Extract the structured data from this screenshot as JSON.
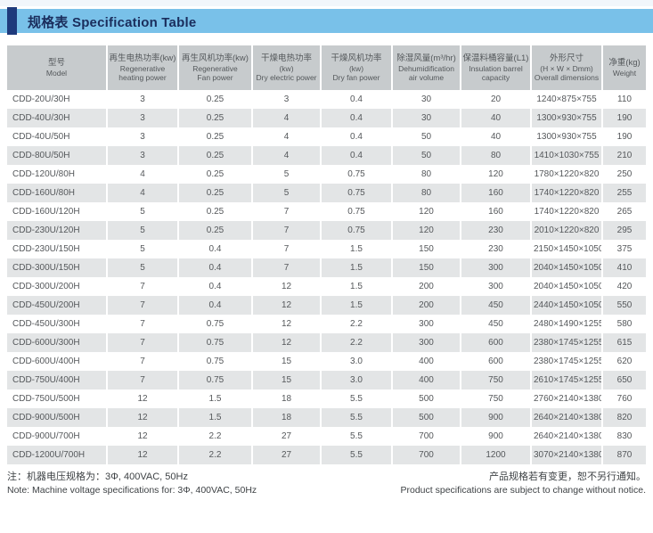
{
  "header": {
    "title_zh": "规格表",
    "title_en": "Specification Table"
  },
  "colors": {
    "title_bar_blue": "#79c1e9",
    "title_accent_navy": "#1e3a7c",
    "table_header_gray": "#c7cbcd",
    "row_stripe_gray": "#e3e5e6"
  },
  "table": {
    "columns": [
      {
        "lines": [
          "型号",
          "Model"
        ]
      },
      {
        "lines": [
          "再生电热功率(kw)",
          "Regenerative",
          "heating power"
        ]
      },
      {
        "lines": [
          "再生风机功率(kw)",
          "Regenerative",
          "Fan power"
        ]
      },
      {
        "lines": [
          "干燥电热功率",
          "(kw)",
          "Dry electric power"
        ]
      },
      {
        "lines": [
          "干燥风机功率",
          "(kw)",
          "Dry fan power"
        ]
      },
      {
        "lines": [
          "除湿风量(m³/hr)",
          "Dehumidification",
          "air volume"
        ]
      },
      {
        "lines": [
          "保温料桶容量(L1)",
          "Insulation barrel",
          "capacity"
        ]
      },
      {
        "lines": [
          "外形尺寸",
          "(H × W × Dmm)",
          "Overall dimensions"
        ]
      },
      {
        "lines": [
          "净重(kg)",
          "Weight"
        ]
      }
    ],
    "rows": [
      [
        "CDD-20U/30H",
        "3",
        "0.25",
        "3",
        "0.4",
        "30",
        "20",
        "1240×875×755",
        "110"
      ],
      [
        "CDD-40U/30H",
        "3",
        "0.25",
        "4",
        "0.4",
        "30",
        "40",
        "1300×930×755",
        "190"
      ],
      [
        "CDD-40U/50H",
        "3",
        "0.25",
        "4",
        "0.4",
        "50",
        "40",
        "1300×930×755",
        "190"
      ],
      [
        "CDD-80U/50H",
        "3",
        "0.25",
        "4",
        "0.4",
        "50",
        "80",
        "1410×1030×755",
        "210"
      ],
      [
        "CDD-120U/80H",
        "4",
        "0.25",
        "5",
        "0.75",
        "80",
        "120",
        "1780×1220×820",
        "250"
      ],
      [
        "CDD-160U/80H",
        "4",
        "0.25",
        "5",
        "0.75",
        "80",
        "160",
        "1740×1220×820",
        "255"
      ],
      [
        "CDD-160U/120H",
        "5",
        "0.25",
        "7",
        "0.75",
        "120",
        "160",
        "1740×1220×820",
        "265"
      ],
      [
        "CDD-230U/120H",
        "5",
        "0.25",
        "7",
        "0.75",
        "120",
        "230",
        "2010×1220×820",
        "295"
      ],
      [
        "CDD-230U/150H",
        "5",
        "0.4",
        "7",
        "1.5",
        "150",
        "230",
        "2150×1450×1050",
        "375"
      ],
      [
        "CDD-300U/150H",
        "5",
        "0.4",
        "7",
        "1.5",
        "150",
        "300",
        "2040×1450×1050",
        "410"
      ],
      [
        "CDD-300U/200H",
        "7",
        "0.4",
        "12",
        "1.5",
        "200",
        "300",
        "2040×1450×1050",
        "420"
      ],
      [
        "CDD-450U/200H",
        "7",
        "0.4",
        "12",
        "1.5",
        "200",
        "450",
        "2440×1450×1050",
        "550"
      ],
      [
        "CDD-450U/300H",
        "7",
        "0.75",
        "12",
        "2.2",
        "300",
        "450",
        "2480×1490×1255",
        "580"
      ],
      [
        "CDD-600U/300H",
        "7",
        "0.75",
        "12",
        "2.2",
        "300",
        "600",
        "2380×1745×1255",
        "615"
      ],
      [
        "CDD-600U/400H",
        "7",
        "0.75",
        "15",
        "3.0",
        "400",
        "600",
        "2380×1745×1255",
        "620"
      ],
      [
        "CDD-750U/400H",
        "7",
        "0.75",
        "15",
        "3.0",
        "400",
        "750",
        "2610×1745×1255",
        "650"
      ],
      [
        "CDD-750U/500H",
        "12",
        "1.5",
        "18",
        "5.5",
        "500",
        "750",
        "2760×2140×1380",
        "760"
      ],
      [
        "CDD-900U/500H",
        "12",
        "1.5",
        "18",
        "5.5",
        "500",
        "900",
        "2640×2140×1380",
        "820"
      ],
      [
        "CDD-900U/700H",
        "12",
        "2.2",
        "27",
        "5.5",
        "700",
        "900",
        "2640×2140×1380",
        "830"
      ],
      [
        "CDD-1200U/700H",
        "12",
        "2.2",
        "27",
        "5.5",
        "700",
        "1200",
        "3070×2140×1380",
        "870"
      ]
    ]
  },
  "notes": {
    "left_zh": "注：机器电压规格为：3Φ, 400VAC, 50Hz",
    "left_en": "Note: Machine voltage specifications for: 3Φ, 400VAC, 50Hz",
    "right_zh": "产品规格若有变更，恕不另行通知。",
    "right_en": "Product specifications are subject to change without notice."
  }
}
